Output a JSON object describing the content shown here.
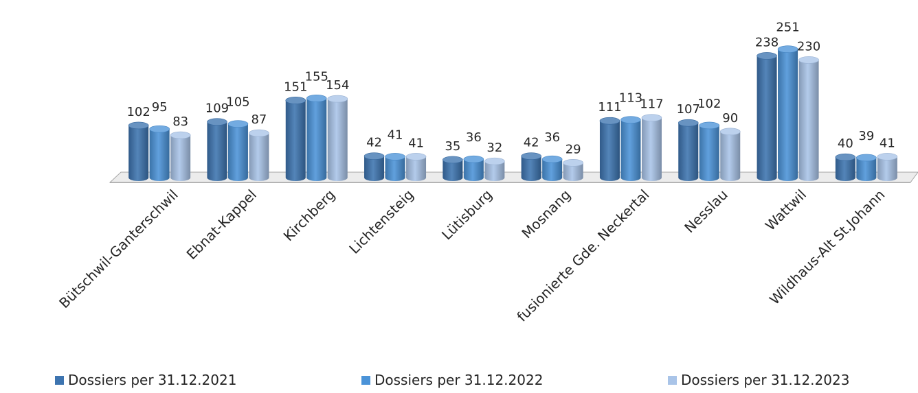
{
  "chart_data": {
    "type": "bar",
    "style": "3d-cylinder",
    "categories": [
      "Bütschwil-Ganterschwil",
      "Ebnat-Kappel",
      "Kirchberg",
      "Lichtensteig",
      "Lütisburg",
      "Mosnang",
      "fusionierte Gde. Neckertal",
      "Nesslau",
      "Wattwil",
      "Wildhaus-Alt St.Johann"
    ],
    "series": [
      {
        "name": "Dossiers per 31.12.2021",
        "color": "#3d74b0",
        "values": [
          102,
          109,
          151,
          42,
          35,
          42,
          111,
          107,
          238,
          40
        ]
      },
      {
        "name": "Dossiers per 31.12.2022",
        "color": "#4b93d8",
        "values": [
          95,
          105,
          155,
          41,
          36,
          36,
          113,
          102,
          251,
          39
        ]
      },
      {
        "name": "Dossiers per 31.12.2023",
        "color": "#a9c4e8",
        "values": [
          83,
          87,
          154,
          41,
          32,
          29,
          117,
          90,
          230,
          41
        ]
      }
    ],
    "title": "",
    "xlabel": "",
    "ylabel": "",
    "ylim": [
      0,
      260
    ],
    "grid": false,
    "legend_position": "bottom",
    "data_labels": true
  }
}
